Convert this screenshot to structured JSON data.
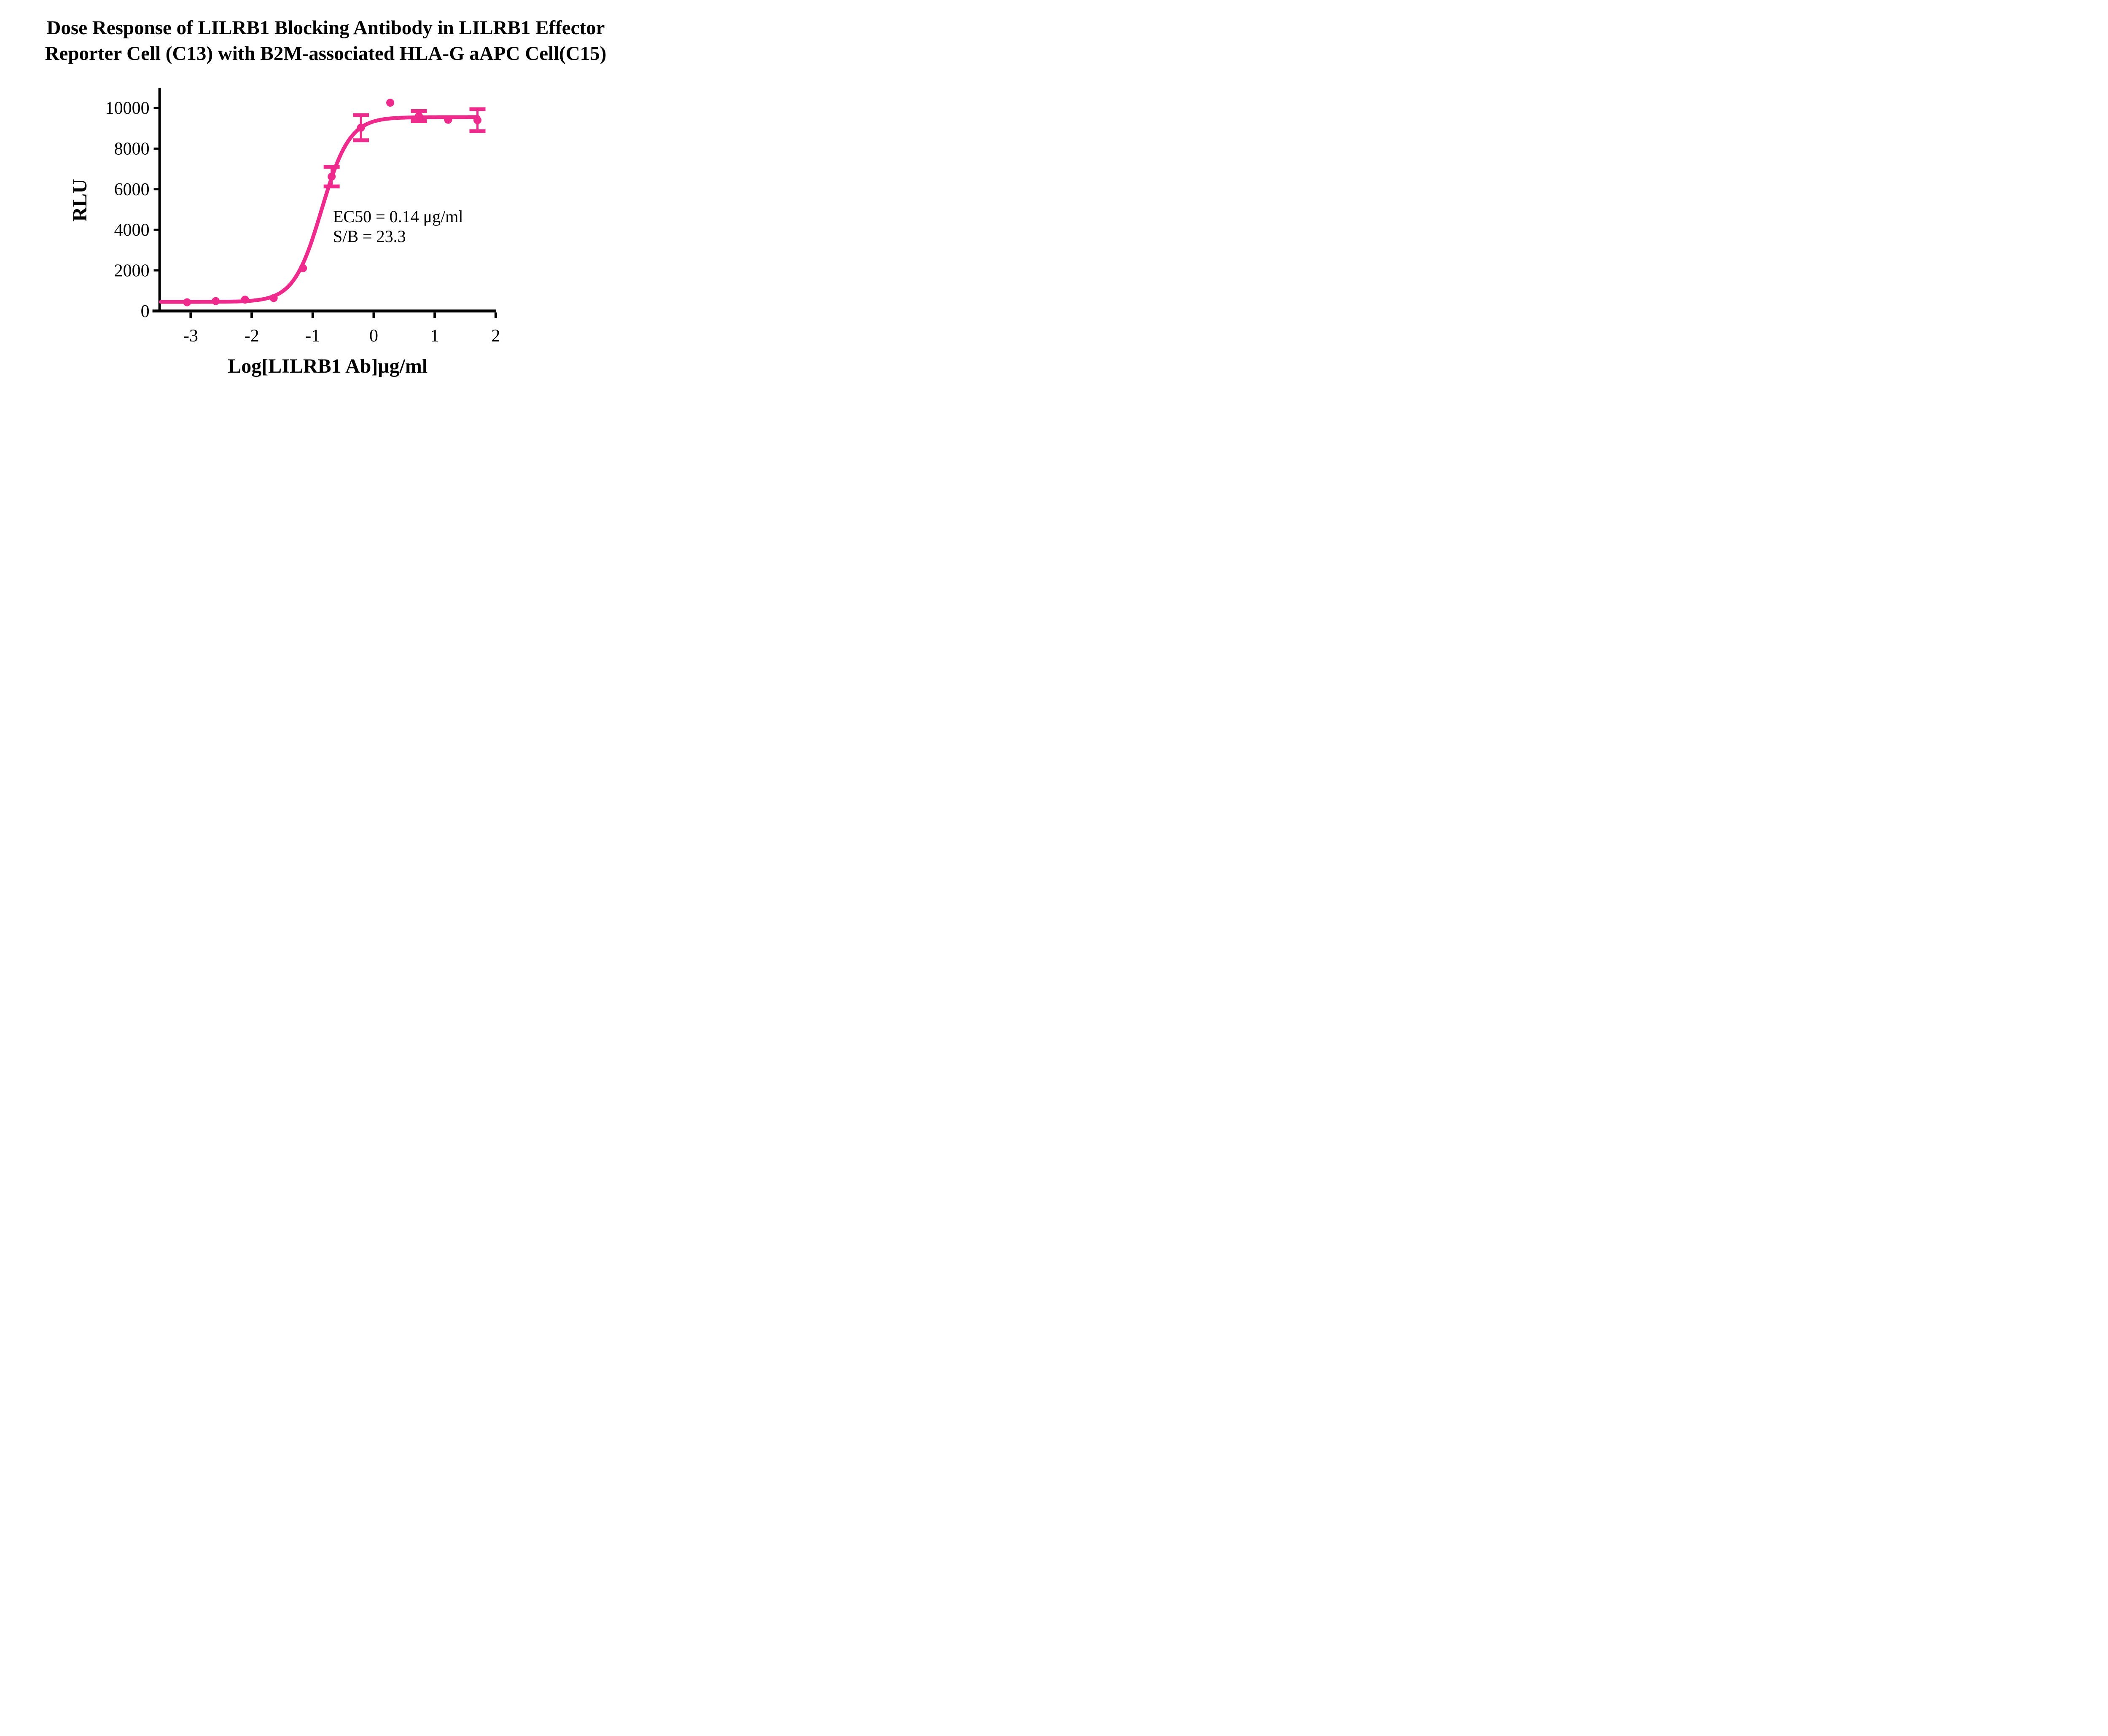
{
  "title": {
    "line1": "Dose Response of LILRB1 Blocking Antibody in LILRB1 Effector",
    "line2": "Reporter Cell (C13) with B2M-associated HLA-G aAPC Cell(C15)"
  },
  "chart_data": {
    "type": "scatter",
    "title": "Dose Response of LILRB1 Blocking Antibody in LILRB1 Effector Reporter Cell (C13) with B2M-associated HLA-G aAPC Cell(C15)",
    "xlabel": "Log[LILRB1 Ab]μg/ml",
    "ylabel": "RLU",
    "x": [
      -3.06,
      -2.59,
      -2.11,
      -1.64,
      -1.16,
      -0.69,
      -0.21,
      0.27,
      0.74,
      1.22,
      1.7
    ],
    "y": [
      430,
      490,
      560,
      640,
      2110,
      6620,
      9030,
      10260,
      9600,
      9420,
      9400
    ],
    "y_error": [
      0,
      0,
      0,
      0,
      0,
      480,
      620,
      0,
      250,
      0,
      540
    ],
    "x_ticks": [
      -3,
      -2,
      -1,
      0,
      1,
      2
    ],
    "y_ticks": [
      0,
      2000,
      4000,
      6000,
      8000,
      10000
    ],
    "xlim": [
      -3.51,
      2
    ],
    "ylim": [
      0,
      11000
    ],
    "grid": false,
    "legend": "none",
    "fit_curve": {
      "model": "4PL-sigmoid",
      "bottom": 450,
      "top": 9550,
      "log_ec50": -0.854,
      "hill": 1.9,
      "x_start": -3.49,
      "x_end": 1.72
    },
    "annotations": [
      "EC50 = 0.14 μg/ml",
      "S/B = 23.3"
    ],
    "series_color": "#EE2A8C",
    "axis_color": "#000000"
  }
}
